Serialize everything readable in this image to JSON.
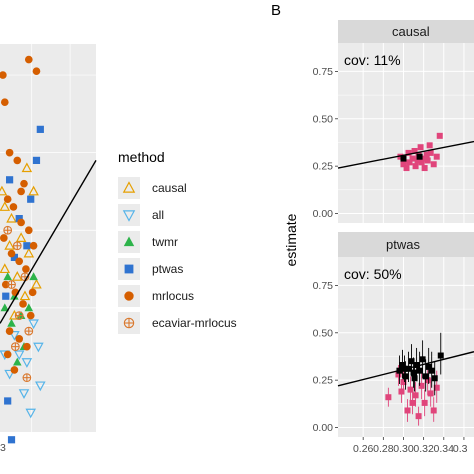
{
  "colors": {
    "panel_bg": "#ebebeb",
    "strip_bg": "#d9d9d9",
    "grid": "#ffffff",
    "causal": "#e69f00",
    "all": "#56b4e9",
    "twmr": "#2db34a",
    "ptwas": "#2f73d0",
    "mrlocus": "#d55e00",
    "ecaviar_mrlocus": "#d9782e",
    "highlight": "#e0457b",
    "black": "#000000"
  },
  "panel_b_letter": "B",
  "panel_a_tick_fragment": "3",
  "legend": {
    "title": "method",
    "items": [
      {
        "label": "causal",
        "shape": "triangle-open",
        "color_key": "causal"
      },
      {
        "label": "all",
        "shape": "triangle-down-open",
        "color_key": "all"
      },
      {
        "label": "twmr",
        "shape": "triangle-filled",
        "color_key": "twmr"
      },
      {
        "label": "ptwas",
        "shape": "square-filled",
        "color_key": "ptwas"
      },
      {
        "label": "mrlocus",
        "shape": "circle-filled",
        "color_key": "mrlocus"
      },
      {
        "label": "ecaviar-mrlocus",
        "shape": "circle-plus",
        "color_key": "ecaviar_mrlocus"
      }
    ]
  },
  "chart_data": [
    {
      "type": "scatter",
      "panel": "A",
      "note": "partially cropped panel; axis values not visible",
      "series": [
        {
          "method": "causal",
          "points": [
            [
              0.02,
              0.62
            ],
            [
              0.05,
              0.58
            ],
            [
              0.12,
              0.55
            ],
            [
              0.28,
              0.68
            ],
            [
              0.35,
              0.62
            ],
            [
              0.1,
              0.48
            ],
            [
              0.22,
              0.5
            ],
            [
              0.3,
              0.46
            ],
            [
              0.05,
              0.42
            ],
            [
              0.18,
              0.4
            ],
            [
              0.38,
              0.38
            ],
            [
              0.15,
              0.3
            ],
            [
              0.26,
              0.35
            ]
          ]
        },
        {
          "method": "all",
          "points": [
            [
              0.2,
              0.2
            ],
            [
              0.35,
              0.28
            ],
            [
              0.42,
              0.12
            ],
            [
              0.1,
              0.15
            ],
            [
              0.25,
              0.1
            ],
            [
              0.32,
              0.05
            ],
            [
              0.15,
              0.25
            ],
            [
              0.4,
              0.22
            ],
            [
              0.28,
              0.18
            ],
            [
              0.05,
              0.2
            ]
          ]
        },
        {
          "method": "twmr",
          "points": [
            [
              0.08,
              0.4
            ],
            [
              0.15,
              0.35
            ],
            [
              0.22,
              0.3
            ],
            [
              0.3,
              0.32
            ],
            [
              0.12,
              0.28
            ],
            [
              0.25,
              0.22
            ],
            [
              0.05,
              0.32
            ],
            [
              0.18,
              0.18
            ],
            [
              0.35,
              0.4
            ]
          ]
        },
        {
          "method": "ptwas",
          "points": [
            [
              0.42,
              0.78
            ],
            [
              0.38,
              0.7
            ],
            [
              0.32,
              0.6
            ],
            [
              0.1,
              0.65
            ],
            [
              0.2,
              0.55
            ],
            [
              0.28,
              0.48
            ],
            [
              0.15,
              0.45
            ],
            [
              0.08,
              0.08
            ],
            [
              0.12,
              -0.02
            ],
            [
              0.06,
              0.35
            ]
          ]
        },
        {
          "method": "mrlocus",
          "points": [
            [
              0.3,
              0.96
            ],
            [
              0.38,
              0.93
            ],
            [
              0.03,
              0.92
            ],
            [
              0.05,
              0.85
            ],
            [
              0.1,
              0.72
            ],
            [
              0.18,
              0.7
            ],
            [
              0.25,
              0.64
            ],
            [
              0.08,
              0.6
            ],
            [
              0.14,
              0.58
            ],
            [
              0.22,
              0.54
            ],
            [
              0.3,
              0.52
            ],
            [
              0.04,
              0.5
            ],
            [
              0.12,
              0.46
            ],
            [
              0.2,
              0.44
            ],
            [
              0.27,
              0.42
            ],
            [
              0.35,
              0.48
            ],
            [
              0.06,
              0.38
            ],
            [
              0.16,
              0.36
            ],
            [
              0.24,
              0.33
            ],
            [
              0.32,
              0.3
            ],
            [
              0.1,
              0.26
            ],
            [
              0.2,
              0.24
            ],
            [
              0.28,
              0.22
            ],
            [
              0.15,
              0.16
            ],
            [
              0.08,
              0.2
            ],
            [
              0.34,
              0.36
            ],
            [
              0.22,
              0.62
            ]
          ]
        },
        {
          "method": "ecaviar-mrlocus",
          "points": [
            [
              0.08,
              0.52
            ],
            [
              0.18,
              0.48
            ],
            [
              0.26,
              0.4
            ],
            [
              0.12,
              0.38
            ],
            [
              0.3,
              0.26
            ],
            [
              0.2,
              0.3
            ],
            [
              0.28,
              0.14
            ],
            [
              0.16,
              0.22
            ]
          ]
        }
      ],
      "fit_line": {
        "x": [
          0.0,
          1.0
        ],
        "y": [
          0.28,
          0.7
        ]
      }
    },
    {
      "type": "scatter",
      "panel": "B",
      "facet": "causal",
      "annotation": "cov: 11%",
      "ylabel": "estimate",
      "ylim": [
        -0.05,
        0.9
      ],
      "xlim": [
        0.235,
        0.37
      ],
      "y_ticks": [
        "0.00",
        "0.25",
        "0.50",
        "0.75"
      ],
      "y_tick_values": [
        0.0,
        0.25,
        0.5,
        0.75
      ],
      "highlight_points": [
        [
          0.297,
          0.3
        ],
        [
          0.3,
          0.26
        ],
        [
          0.303,
          0.24
        ],
        [
          0.306,
          0.27
        ],
        [
          0.309,
          0.29
        ],
        [
          0.312,
          0.25
        ],
        [
          0.315,
          0.31
        ],
        [
          0.318,
          0.27
        ],
        [
          0.321,
          0.24
        ],
        [
          0.324,
          0.28
        ],
        [
          0.327,
          0.32
        ],
        [
          0.33,
          0.26
        ],
        [
          0.333,
          0.3
        ],
        [
          0.305,
          0.32
        ],
        [
          0.311,
          0.33
        ],
        [
          0.317,
          0.35
        ],
        [
          0.323,
          0.31
        ],
        [
          0.326,
          0.36
        ],
        [
          0.336,
          0.41
        ],
        [
          0.3,
          0.28
        ],
        [
          0.314,
          0.28
        ],
        [
          0.32,
          0.29
        ]
      ],
      "black_points": [
        [
          0.3,
          0.29
        ],
        [
          0.316,
          0.3
        ]
      ],
      "fit_line": {
        "x": [
          0.235,
          0.37
        ],
        "y": [
          0.24,
          0.38
        ]
      }
    },
    {
      "type": "scatter",
      "panel": "B",
      "facet": "ptwas",
      "annotation": "cov: 50%",
      "ylabel": "estimate",
      "ylim": [
        -0.05,
        0.9
      ],
      "xlim": [
        0.235,
        0.37
      ],
      "y_ticks": [
        "0.00",
        "0.25",
        "0.50",
        "0.75"
      ],
      "y_tick_values": [
        0.0,
        0.25,
        0.5,
        0.75
      ],
      "x_ticks": [
        "0.26",
        "0.28",
        "0.30",
        "0.32",
        "0.34"
      ],
      "x_tick_values": [
        0.26,
        0.28,
        0.3,
        0.32,
        0.34
      ],
      "x_tick_fragment": "0.3",
      "black_points": [
        {
          "x": 0.296,
          "y": 0.3,
          "lo": 0.23,
          "hi": 0.38
        },
        {
          "x": 0.299,
          "y": 0.33,
          "lo": 0.26,
          "hi": 0.41
        },
        {
          "x": 0.302,
          "y": 0.27,
          "lo": 0.2,
          "hi": 0.35
        },
        {
          "x": 0.305,
          "y": 0.31,
          "lo": 0.24,
          "hi": 0.4
        },
        {
          "x": 0.308,
          "y": 0.35,
          "lo": 0.27,
          "hi": 0.44
        },
        {
          "x": 0.31,
          "y": 0.29,
          "lo": 0.21,
          "hi": 0.37
        },
        {
          "x": 0.313,
          "y": 0.33,
          "lo": 0.25,
          "hi": 0.42
        },
        {
          "x": 0.316,
          "y": 0.3,
          "lo": 0.22,
          "hi": 0.4
        },
        {
          "x": 0.319,
          "y": 0.36,
          "lo": 0.26,
          "hi": 0.46
        },
        {
          "x": 0.322,
          "y": 0.27,
          "lo": 0.19,
          "hi": 0.36
        },
        {
          "x": 0.325,
          "y": 0.32,
          "lo": 0.23,
          "hi": 0.42
        },
        {
          "x": 0.328,
          "y": 0.3,
          "lo": 0.21,
          "hi": 0.4
        },
        {
          "x": 0.331,
          "y": 0.26,
          "lo": 0.17,
          "hi": 0.35
        },
        {
          "x": 0.301,
          "y": 0.31,
          "lo": 0.24,
          "hi": 0.38
        },
        {
          "x": 0.311,
          "y": 0.26,
          "lo": 0.19,
          "hi": 0.34
        },
        {
          "x": 0.337,
          "y": 0.38,
          "lo": 0.28,
          "hi": 0.5
        }
      ],
      "highlight_points": [
        {
          "x": 0.285,
          "y": 0.16,
          "lo": 0.11,
          "hi": 0.21
        },
        {
          "x": 0.295,
          "y": 0.28,
          "lo": 0.22,
          "hi": 0.33
        },
        {
          "x": 0.3,
          "y": 0.24,
          "lo": 0.18,
          "hi": 0.3
        },
        {
          "x": 0.304,
          "y": 0.09,
          "lo": 0.03,
          "hi": 0.15
        },
        {
          "x": 0.307,
          "y": 0.2,
          "lo": 0.14,
          "hi": 0.27
        },
        {
          "x": 0.312,
          "y": 0.17,
          "lo": 0.11,
          "hi": 0.24
        },
        {
          "x": 0.315,
          "y": 0.06,
          "lo": 0.01,
          "hi": 0.11
        },
        {
          "x": 0.318,
          "y": 0.22,
          "lo": 0.15,
          "hi": 0.29
        },
        {
          "x": 0.321,
          "y": 0.13,
          "lo": 0.06,
          "hi": 0.2
        },
        {
          "x": 0.324,
          "y": 0.25,
          "lo": 0.17,
          "hi": 0.33
        },
        {
          "x": 0.327,
          "y": 0.18,
          "lo": 0.11,
          "hi": 0.26
        },
        {
          "x": 0.33,
          "y": 0.09,
          "lo": 0.03,
          "hi": 0.16
        },
        {
          "x": 0.333,
          "y": 0.21,
          "lo": 0.13,
          "hi": 0.3
        },
        {
          "x": 0.298,
          "y": 0.19,
          "lo": 0.13,
          "hi": 0.25
        },
        {
          "x": 0.309,
          "y": 0.13,
          "lo": 0.07,
          "hi": 0.19
        }
      ],
      "fit_line": {
        "x": [
          0.235,
          0.37
        ],
        "y": [
          0.22,
          0.4
        ]
      }
    }
  ]
}
